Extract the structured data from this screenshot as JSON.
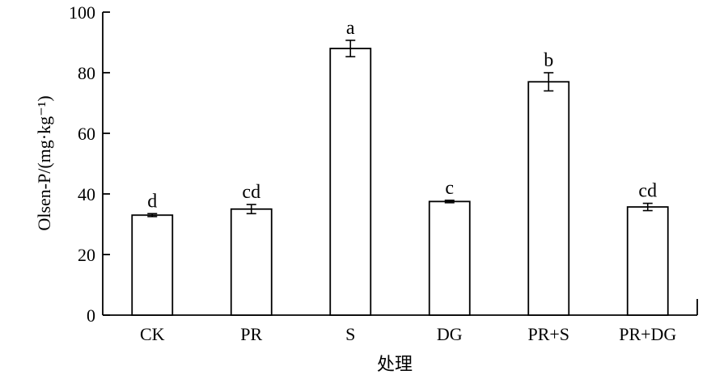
{
  "chart_data": {
    "type": "bar",
    "categories": [
      "CK",
      "PR",
      "S",
      "DG",
      "PR+S",
      "PR+DG"
    ],
    "values": [
      33.0,
      35.0,
      88.0,
      37.5,
      77.0,
      35.7
    ],
    "errors": [
      0.5,
      1.5,
      2.7,
      0.4,
      3.0,
      1.2
    ],
    "significance": [
      "d",
      "cd",
      "a",
      "c",
      "b",
      "cd"
    ],
    "xlabel": "处理",
    "ylabel": "Olsen-P/(mg·kg⁻¹)",
    "ylim": [
      0,
      100
    ],
    "yticks": [
      0,
      20,
      40,
      60,
      80,
      100
    ],
    "grid": false
  }
}
